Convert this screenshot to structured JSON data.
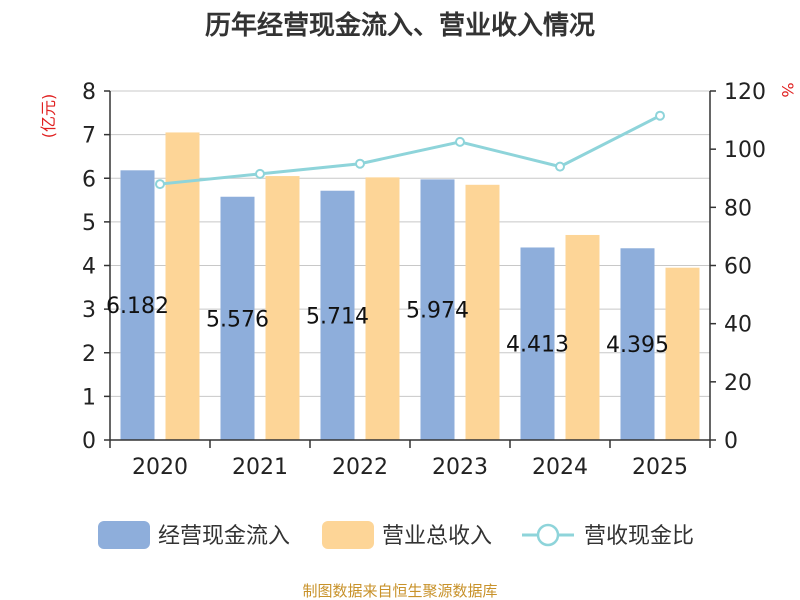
{
  "chart_data": {
    "type": "bar",
    "title": "历年经营现金流入、营业收入情况",
    "categories": [
      "2020",
      "2021",
      "2022",
      "2023",
      "2024",
      "2025"
    ],
    "series": [
      {
        "name": "经营现金流入",
        "type": "bar",
        "axis": "left",
        "values": [
          6.182,
          5.576,
          5.714,
          5.974,
          4.413,
          4.395
        ],
        "color": "#8eaedb"
      },
      {
        "name": "营业总收入",
        "type": "bar",
        "axis": "left",
        "values": [
          7.05,
          6.05,
          6.02,
          5.85,
          4.7,
          3.95
        ],
        "color": "#fdd597"
      },
      {
        "name": "营收现金比",
        "type": "line",
        "axis": "right",
        "values": [
          88,
          91.5,
          95,
          102.5,
          94,
          111.5
        ],
        "color": "#8ed4da"
      }
    ],
    "data_labels": [
      "6.182",
      "5.576",
      "5.714",
      "5.974",
      "4.413",
      "4.395"
    ],
    "y_left": {
      "unit": "(亿元)",
      "lim": [
        0,
        8
      ],
      "ticks": [
        "0",
        "1",
        "2",
        "3",
        "4",
        "5",
        "6",
        "7",
        "8"
      ]
    },
    "y_right": {
      "unit": "%",
      "lim": [
        0,
        120
      ],
      "ticks": [
        "0",
        "20",
        "40",
        "60",
        "80",
        "100",
        "120"
      ]
    },
    "grid": true,
    "legend": "bottom"
  },
  "source": "制图数据来自恒生聚源数据库"
}
